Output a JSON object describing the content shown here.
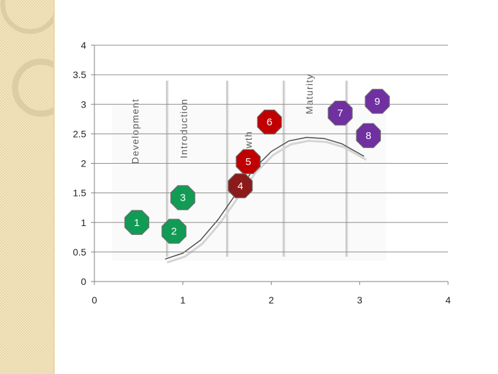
{
  "theme": {
    "sidebar_color": "#f3e5bf",
    "ring_color": "#d9c9a2",
    "grid_color": "#8c8c8c",
    "axis_color": "#7f7f7f",
    "green": "#119b55",
    "red": "#c00000",
    "dark_red": "#8b1a1a",
    "purple": "#7030a0",
    "badge_border": "#6d6d6d"
  },
  "chart_data": {
    "type": "scatter",
    "title": "",
    "xlabel": "",
    "ylabel": "",
    "xlim": [
      0,
      4
    ],
    "ylim": [
      0,
      4
    ],
    "x_ticks": [
      0,
      1,
      2,
      3,
      4
    ],
    "y_ticks": [
      0,
      0.5,
      1,
      1.5,
      2,
      2.5,
      3,
      3.5,
      4
    ],
    "y_tick_labels": [
      "0",
      "0.5",
      "1",
      "1.5",
      "2",
      "2.5",
      "3",
      "3.5",
      "4"
    ],
    "x_tick_labels": [
      "0",
      "1",
      "2",
      "3",
      "4"
    ],
    "grid": "horizontal",
    "points": [
      {
        "label": "1",
        "x": 0.48,
        "y": 1.0,
        "color": "#119b55"
      },
      {
        "label": "2",
        "x": 0.9,
        "y": 0.85,
        "color": "#119b55"
      },
      {
        "label": "3",
        "x": 1.0,
        "y": 1.42,
        "color": "#119b55"
      },
      {
        "label": "4",
        "x": 1.65,
        "y": 1.62,
        "color": "#8b1a1a"
      },
      {
        "label": "5",
        "x": 1.74,
        "y": 2.03,
        "color": "#c00000"
      },
      {
        "label": "6",
        "x": 1.98,
        "y": 2.7,
        "color": "#c00000"
      },
      {
        "label": "7",
        "x": 2.78,
        "y": 2.85,
        "color": "#7030a0"
      },
      {
        "label": "8",
        "x": 3.1,
        "y": 2.47,
        "color": "#7030a0"
      },
      {
        "label": "9",
        "x": 3.2,
        "y": 3.05,
        "color": "#7030a0"
      }
    ],
    "background_image": {
      "stage_labels": [
        "Development",
        "Introduction",
        "Growth",
        "Maturity"
      ],
      "stage_labels_x": [
        0.5,
        1.05,
        1.78,
        2.47
      ],
      "stage_divider_x": [
        0.82,
        1.5,
        2.14,
        2.85
      ],
      "curve": [
        [
          0.8,
          0.38
        ],
        [
          1.0,
          0.48
        ],
        [
          1.2,
          0.7
        ],
        [
          1.4,
          1.05
        ],
        [
          1.6,
          1.48
        ],
        [
          1.8,
          1.9
        ],
        [
          2.0,
          2.2
        ],
        [
          2.2,
          2.38
        ],
        [
          2.4,
          2.44
        ],
        [
          2.6,
          2.42
        ],
        [
          2.8,
          2.33
        ],
        [
          3.05,
          2.12
        ]
      ]
    }
  }
}
